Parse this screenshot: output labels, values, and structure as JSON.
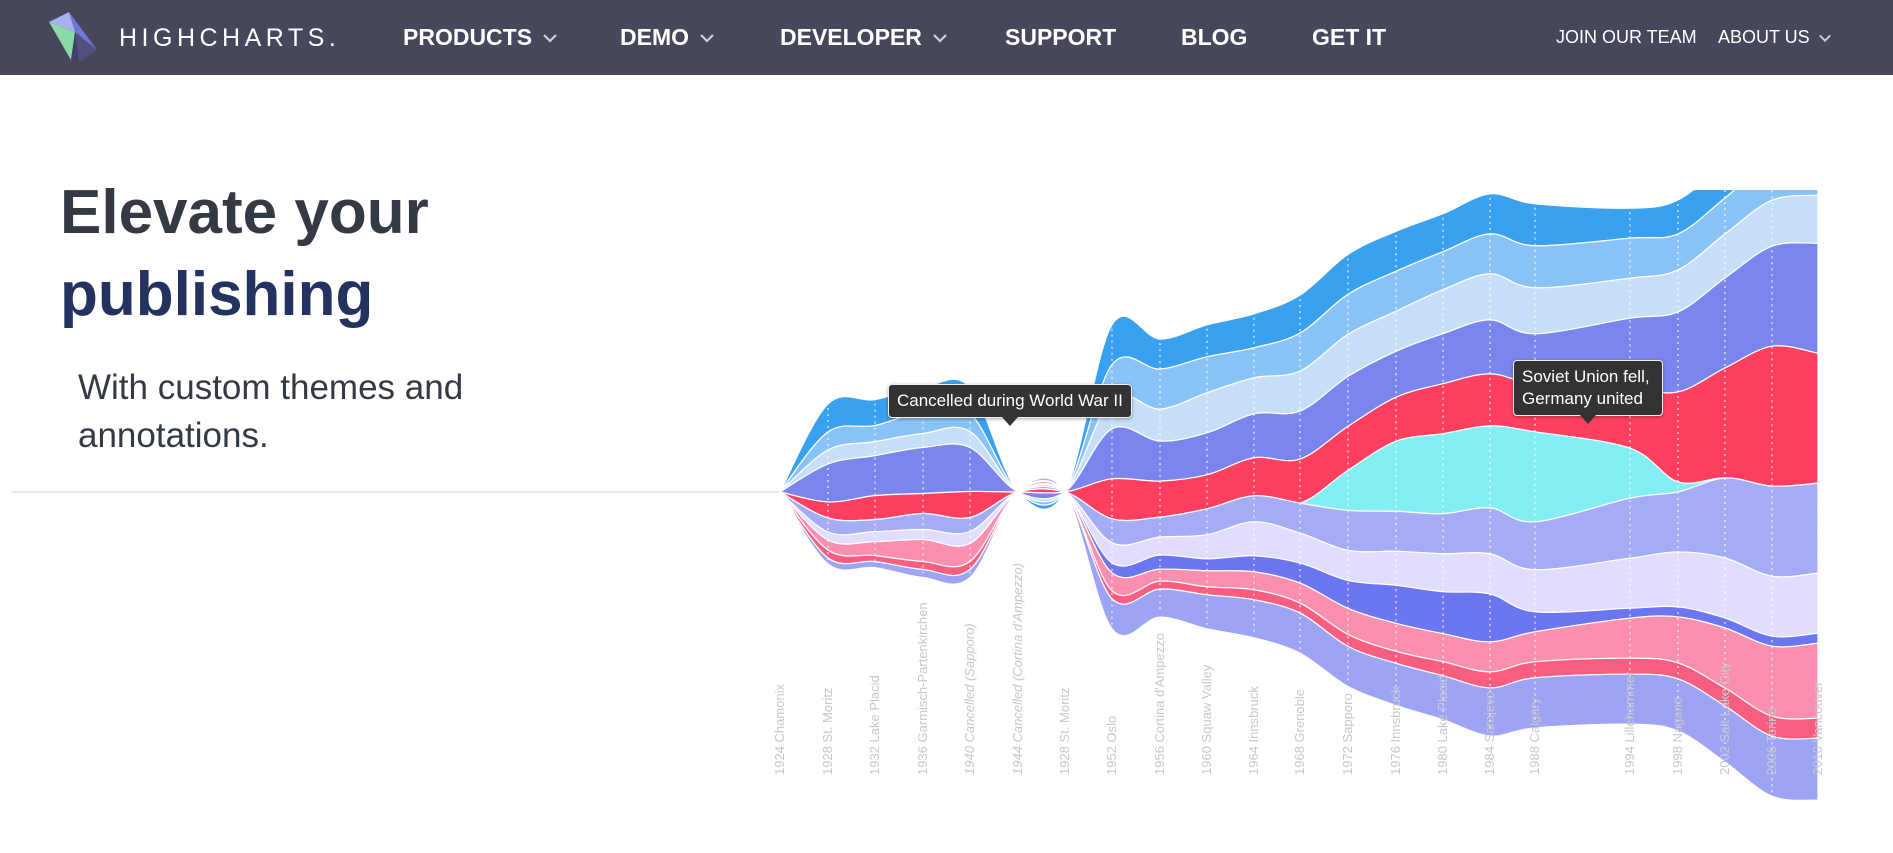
{
  "nav": {
    "logo_text": "HIGHCHARTS.",
    "items": [
      {
        "label": "PRODUCTS",
        "dropdown": true
      },
      {
        "label": "DEMO",
        "dropdown": true
      },
      {
        "label": "DEVELOPER",
        "dropdown": true
      },
      {
        "label": "SUPPORT",
        "dropdown": false
      },
      {
        "label": "BLOG",
        "dropdown": false
      },
      {
        "label": "GET IT",
        "dropdown": false
      }
    ],
    "right_items": [
      {
        "label": "JOIN OUR TEAM",
        "dropdown": false
      },
      {
        "label": "ABOUT US",
        "dropdown": true
      }
    ],
    "background": "#47475c"
  },
  "hero": {
    "title_line1": "Elevate your",
    "title_line2": "publishing",
    "subtitle": "With custom themes and annotations.",
    "title_color": "#333a44",
    "accent_color": "#23325f"
  },
  "chart_data": {
    "type": "area",
    "subtype": "streamgraph",
    "categories": [
      "1924 Chamonix",
      "1928 St. Moritz",
      "1932 Lake Placid",
      "1936 Garmisch-Partenkirchen",
      "1940 Cancelled (Sapporo)",
      "1944 Cancelled (Cortina d'Ampezzo)",
      "1928 St. Moritz",
      "1952 Oslo",
      "1956 Cortina d'Ampezzo",
      "1960 Squaw Valley",
      "1964 Innsbruck",
      "1968 Grenoble",
      "1972 Sapporo",
      "1976 Innsbruck",
      "1980 Lake Placid",
      "1984 Sarajevo",
      "1988 Calgary",
      "1994 Lillehammer",
      "1998 Nagano",
      "2002 Salt Lake City",
      "2006 Torino",
      "2010 Vancouver"
    ],
    "series_colors": [
      "#3aa1f1",
      "#89c2f7",
      "#c7def9",
      "#7b85ee",
      "#ff3f5f",
      "#84eef5",
      "#a4acf5",
      "#e0ddff",
      "#6c76f1",
      "#fb8fae",
      "#f75e80",
      "#9ea3f4"
    ],
    "annotations": [
      {
        "category": "1944 Cancelled (Cortina d'Ampezzo)",
        "text": "Cancelled during World War II"
      },
      {
        "category": "1994 Lillehammer",
        "text": "Soviet Union fell, Germany united"
      }
    ],
    "legend": false,
    "grid": false
  }
}
